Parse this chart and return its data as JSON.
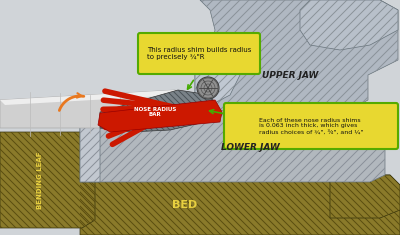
{
  "bg_color": "#d0d4d8",
  "upper_jaw_color": "#b0b8c2",
  "upper_jaw_stripe": "#8a9299",
  "lower_jaw_color": "#b2b8be",
  "lower_jaw_stripe": "#8a9099",
  "bed_color": "#8a7a2a",
  "bed_stripe": "#5a4d10",
  "bending_leaf_color": "#8a7a2a",
  "bending_leaf_stripe": "#5a4d10",
  "nose_bar_color": "#7a8288",
  "nose_bar_stripe": "#4a5258",
  "red_color": "#cc1800",
  "bolt_color": "#888888",
  "bolt_dark": "#555555",
  "white_tube_color": "#d8d8d8",
  "white_tube_hi": "#f0f0f0",
  "callout_fill": "#e8d830",
  "callout_border": "#55aa00",
  "orange_color": "#e87820",
  "green_color": "#44aa00",
  "label_upper_jaw": "UPPER JAW",
  "label_lower_jaw": "LOWER JAW",
  "label_bed": "BED",
  "label_bending_leaf": "BENDING LEAF",
  "label_nose_bar": "NOSE RADIUS\nBAR",
  "callout_top_text": "This radius shim builds radius\nto precisely ¾\"R",
  "callout_right_text": "Each of these nose radius shims\nis 0.063 inch thick, which gives\nradius choices of ¾\", ³⁄₄\", and ¼\""
}
